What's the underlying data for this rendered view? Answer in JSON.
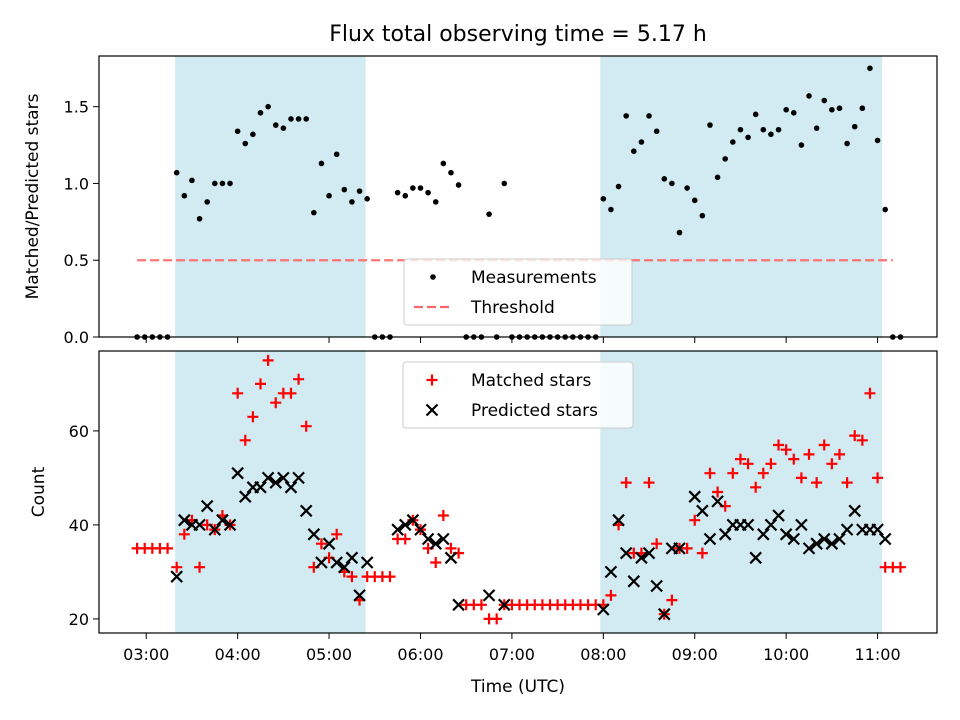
{
  "chart_data": {
    "type": "scatter",
    "title": "Flux total observing time = 5.17 h",
    "xlabel": "Time (UTC)",
    "x_ticks": [
      "03:00",
      "04:00",
      "05:00",
      "06:00",
      "07:00",
      "08:00",
      "09:00",
      "10:00",
      "11:00"
    ],
    "x_range": [
      "02:29",
      "11:39"
    ],
    "shaded_intervals": [
      [
        "03:19",
        "05:24"
      ],
      [
        "07:58",
        "11:03"
      ]
    ],
    "shade_color": "#add8e6",
    "top": {
      "ylabel": "Matched/Predicted stars",
      "ylim": [
        0,
        1.83
      ],
      "y_ticks": [
        "0.0",
        "0.5",
        "1.0",
        "1.5"
      ],
      "threshold": {
        "label": "Threshold",
        "value": 0.5,
        "x_start": "02:54",
        "x_end": "11:10",
        "color": "#ff6666"
      },
      "measurements_label": "Measurements",
      "measurements": [
        [
          "02:54",
          0
        ],
        [
          "02:59",
          0
        ],
        [
          "03:04",
          0
        ],
        [
          "03:09",
          0
        ],
        [
          "03:14",
          0
        ],
        [
          "03:20",
          1.07
        ],
        [
          "03:25",
          0.92
        ],
        [
          "03:30",
          1.02
        ],
        [
          "03:35",
          0.77
        ],
        [
          "03:40",
          0.88
        ],
        [
          "03:45",
          1.0
        ],
        [
          "03:50",
          1.0
        ],
        [
          "03:55",
          1.0
        ],
        [
          "04:00",
          1.34
        ],
        [
          "04:05",
          1.26
        ],
        [
          "04:10",
          1.32
        ],
        [
          "04:15",
          1.46
        ],
        [
          "04:20",
          1.5
        ],
        [
          "04:25",
          1.38
        ],
        [
          "04:30",
          1.36
        ],
        [
          "04:35",
          1.42
        ],
        [
          "04:40",
          1.42
        ],
        [
          "04:45",
          1.42
        ],
        [
          "04:50",
          0.81
        ],
        [
          "04:55",
          1.13
        ],
        [
          "05:00",
          0.92
        ],
        [
          "05:05",
          1.19
        ],
        [
          "05:10",
          0.96
        ],
        [
          "05:15",
          0.88
        ],
        [
          "05:20",
          0.95
        ],
        [
          "05:25",
          0.9
        ],
        [
          "05:30",
          0
        ],
        [
          "05:35",
          0
        ],
        [
          "05:40",
          0
        ],
        [
          "05:45",
          0.94
        ],
        [
          "05:50",
          0.92
        ],
        [
          "05:55",
          0.97
        ],
        [
          "06:00",
          0.97
        ],
        [
          "06:05",
          0.94
        ],
        [
          "06:10",
          0.88
        ],
        [
          "06:15",
          1.13
        ],
        [
          "06:20",
          1.07
        ],
        [
          "06:25",
          0.99
        ],
        [
          "06:30",
          0
        ],
        [
          "06:35",
          0
        ],
        [
          "06:40",
          0
        ],
        [
          "06:45",
          0.8
        ],
        [
          "06:50",
          0
        ],
        [
          "06:55",
          1.0
        ],
        [
          "07:00",
          0
        ],
        [
          "07:05",
          0
        ],
        [
          "07:10",
          0
        ],
        [
          "07:15",
          0
        ],
        [
          "07:20",
          0
        ],
        [
          "07:25",
          0
        ],
        [
          "07:30",
          0
        ],
        [
          "07:35",
          0
        ],
        [
          "07:40",
          0
        ],
        [
          "07:45",
          0
        ],
        [
          "07:50",
          0
        ],
        [
          "07:55",
          0
        ],
        [
          "08:00",
          0.9
        ],
        [
          "08:05",
          0.83
        ],
        [
          "08:10",
          0.98
        ],
        [
          "08:15",
          1.44
        ],
        [
          "08:20",
          1.21
        ],
        [
          "08:25",
          1.27
        ],
        [
          "08:30",
          1.44
        ],
        [
          "08:35",
          1.34
        ],
        [
          "08:40",
          1.03
        ],
        [
          "08:45",
          1.0
        ],
        [
          "08:50",
          0.68
        ],
        [
          "08:55",
          0.97
        ],
        [
          "09:00",
          0.89
        ],
        [
          "09:05",
          0.79
        ],
        [
          "09:10",
          1.38
        ],
        [
          "09:15",
          1.04
        ],
        [
          "09:20",
          1.16
        ],
        [
          "09:25",
          1.27
        ],
        [
          "09:30",
          1.35
        ],
        [
          "09:35",
          1.3
        ],
        [
          "09:40",
          1.45
        ],
        [
          "09:45",
          1.35
        ],
        [
          "09:50",
          1.32
        ],
        [
          "09:55",
          1.35
        ],
        [
          "10:00",
          1.48
        ],
        [
          "10:05",
          1.46
        ],
        [
          "10:10",
          1.25
        ],
        [
          "10:15",
          1.57
        ],
        [
          "10:20",
          1.36
        ],
        [
          "10:25",
          1.54
        ],
        [
          "10:30",
          1.48
        ],
        [
          "10:35",
          1.49
        ],
        [
          "10:40",
          1.26
        ],
        [
          "10:45",
          1.37
        ],
        [
          "10:50",
          1.49
        ],
        [
          "10:55",
          1.75
        ],
        [
          "11:00",
          1.28
        ],
        [
          "11:05",
          0.83
        ],
        [
          "11:10",
          0
        ],
        [
          "11:15",
          0
        ]
      ],
      "legend": [
        "Measurements",
        "Threshold"
      ]
    },
    "bottom": {
      "ylabel": "Count",
      "ylim": [
        17,
        77
      ],
      "y_ticks": [
        "20",
        "40",
        "60"
      ],
      "series": [
        {
          "name": "Matched stars",
          "color": "#ff0000",
          "marker": "+",
          "points": [
            [
              "02:54",
              35
            ],
            [
              "02:59",
              35
            ],
            [
              "03:04",
              35
            ],
            [
              "03:09",
              35
            ],
            [
              "03:14",
              35
            ],
            [
              "03:20",
              31
            ],
            [
              "03:25",
              38
            ],
            [
              "03:30",
              41
            ],
            [
              "03:35",
              31
            ],
            [
              "03:40",
              40
            ],
            [
              "03:45",
              39
            ],
            [
              "03:50",
              42
            ],
            [
              "03:55",
              40
            ],
            [
              "04:00",
              68
            ],
            [
              "04:05",
              58
            ],
            [
              "04:10",
              63
            ],
            [
              "04:15",
              70
            ],
            [
              "04:20",
              75
            ],
            [
              "04:25",
              66
            ],
            [
              "04:30",
              68
            ],
            [
              "04:35",
              68
            ],
            [
              "04:40",
              71
            ],
            [
              "04:45",
              61
            ],
            [
              "04:50",
              31
            ],
            [
              "04:55",
              36
            ],
            [
              "05:00",
              33
            ],
            [
              "05:05",
              38
            ],
            [
              "05:10",
              30
            ],
            [
              "05:15",
              29
            ],
            [
              "05:20",
              24
            ],
            [
              "05:25",
              29
            ],
            [
              "05:30",
              29
            ],
            [
              "05:35",
              29
            ],
            [
              "05:40",
              29
            ],
            [
              "05:45",
              37
            ],
            [
              "05:50",
              37
            ],
            [
              "05:55",
              41
            ],
            [
              "06:00",
              39
            ],
            [
              "06:05",
              35
            ],
            [
              "06:10",
              32
            ],
            [
              "06:15",
              42
            ],
            [
              "06:20",
              35
            ],
            [
              "06:25",
              34
            ],
            [
              "06:30",
              23
            ],
            [
              "06:35",
              23
            ],
            [
              "06:40",
              23
            ],
            [
              "06:45",
              20
            ],
            [
              "06:50",
              20
            ],
            [
              "06:55",
              23
            ],
            [
              "07:00",
              23
            ],
            [
              "07:05",
              23
            ],
            [
              "07:10",
              23
            ],
            [
              "07:15",
              23
            ],
            [
              "07:20",
              23
            ],
            [
              "07:25",
              23
            ],
            [
              "07:30",
              23
            ],
            [
              "07:35",
              23
            ],
            [
              "07:40",
              23
            ],
            [
              "07:45",
              23
            ],
            [
              "07:50",
              23
            ],
            [
              "07:55",
              23
            ],
            [
              "08:00",
              23
            ],
            [
              "08:05",
              25
            ],
            [
              "08:10",
              40
            ],
            [
              "08:15",
              49
            ],
            [
              "08:20",
              34
            ],
            [
              "08:25",
              34
            ],
            [
              "08:30",
              49
            ],
            [
              "08:35",
              36
            ],
            [
              "08:40",
              21
            ],
            [
              "08:45",
              24
            ],
            [
              "08:50",
              35
            ],
            [
              "08:55",
              35
            ],
            [
              "09:00",
              41
            ],
            [
              "09:05",
              34
            ],
            [
              "09:10",
              51
            ],
            [
              "09:15",
              47
            ],
            [
              "09:20",
              44
            ],
            [
              "09:25",
              51
            ],
            [
              "09:30",
              54
            ],
            [
              "09:35",
              53
            ],
            [
              "09:40",
              48
            ],
            [
              "09:45",
              51
            ],
            [
              "09:50",
              53
            ],
            [
              "09:55",
              57
            ],
            [
              "10:00",
              56
            ],
            [
              "10:05",
              54
            ],
            [
              "10:10",
              50
            ],
            [
              "10:15",
              55
            ],
            [
              "10:20",
              49
            ],
            [
              "10:25",
              57
            ],
            [
              "10:30",
              53
            ],
            [
              "10:35",
              55
            ],
            [
              "10:40",
              49
            ],
            [
              "10:45",
              59
            ],
            [
              "10:50",
              58
            ],
            [
              "10:55",
              68
            ],
            [
              "11:00",
              50
            ],
            [
              "11:05",
              31
            ],
            [
              "11:10",
              31
            ],
            [
              "11:15",
              31
            ]
          ]
        },
        {
          "name": "Predicted stars",
          "color": "#000000",
          "marker": "x",
          "points": [
            [
              "03:20",
              29
            ],
            [
              "03:25",
              41
            ],
            [
              "03:30",
              40
            ],
            [
              "03:35",
              40
            ],
            [
              "03:40",
              44
            ],
            [
              "03:45",
              39
            ],
            [
              "03:50",
              41
            ],
            [
              "03:55",
              40
            ],
            [
              "04:00",
              51
            ],
            [
              "04:05",
              46
            ],
            [
              "04:10",
              48
            ],
            [
              "04:15",
              48
            ],
            [
              "04:20",
              50
            ],
            [
              "04:25",
              49
            ],
            [
              "04:30",
              50
            ],
            [
              "04:35",
              48
            ],
            [
              "04:40",
              50
            ],
            [
              "04:45",
              43
            ],
            [
              "04:50",
              38
            ],
            [
              "04:55",
              32
            ],
            [
              "05:00",
              36
            ],
            [
              "05:05",
              32
            ],
            [
              "05:10",
              31
            ],
            [
              "05:15",
              33
            ],
            [
              "05:20",
              25
            ],
            [
              "05:25",
              32
            ],
            [
              "05:45",
              39
            ],
            [
              "05:50",
              40
            ],
            [
              "05:55",
              41
            ],
            [
              "06:00",
              39
            ],
            [
              "06:05",
              37
            ],
            [
              "06:10",
              36
            ],
            [
              "06:15",
              37
            ],
            [
              "06:20",
              33
            ],
            [
              "06:25",
              23
            ],
            [
              "06:45",
              25
            ],
            [
              "06:55",
              23
            ],
            [
              "08:00",
              22
            ],
            [
              "08:05",
              30
            ],
            [
              "08:10",
              41
            ],
            [
              "08:15",
              34
            ],
            [
              "08:20",
              28
            ],
            [
              "08:25",
              33
            ],
            [
              "08:30",
              34
            ],
            [
              "08:35",
              27
            ],
            [
              "08:40",
              21
            ],
            [
              "08:45",
              35
            ],
            [
              "08:50",
              35
            ],
            [
              "09:00",
              46
            ],
            [
              "09:05",
              43
            ],
            [
              "09:10",
              37
            ],
            [
              "09:15",
              45
            ],
            [
              "09:20",
              38
            ],
            [
              "09:25",
              40
            ],
            [
              "09:30",
              40
            ],
            [
              "09:35",
              40
            ],
            [
              "09:40",
              33
            ],
            [
              "09:45",
              38
            ],
            [
              "09:50",
              40
            ],
            [
              "09:55",
              42
            ],
            [
              "10:00",
              38
            ],
            [
              "10:05",
              37
            ],
            [
              "10:10",
              40
            ],
            [
              "10:15",
              35
            ],
            [
              "10:20",
              36
            ],
            [
              "10:25",
              37
            ],
            [
              "10:30",
              36
            ],
            [
              "10:35",
              37
            ],
            [
              "10:40",
              39
            ],
            [
              "10:45",
              43
            ],
            [
              "10:50",
              39
            ],
            [
              "10:55",
              39
            ],
            [
              "11:00",
              39
            ],
            [
              "11:05",
              37
            ]
          ]
        }
      ],
      "legend": [
        "Matched stars",
        "Predicted stars"
      ]
    }
  }
}
